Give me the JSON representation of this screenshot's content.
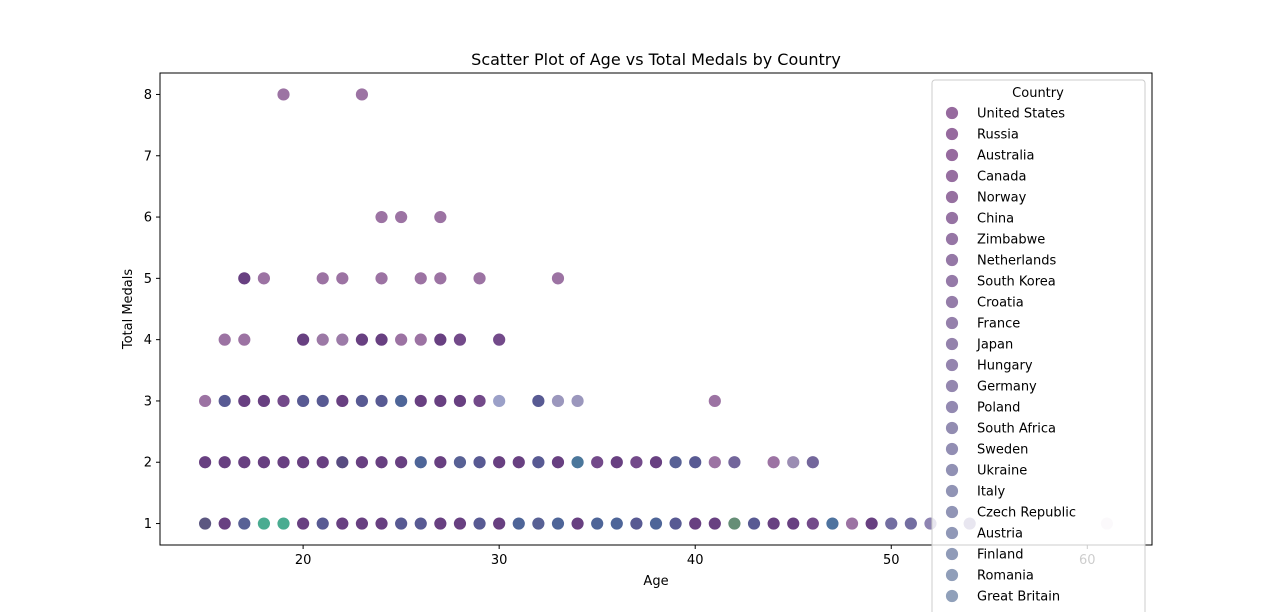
{
  "chart_data": {
    "type": "scatter",
    "title": "Scatter Plot of Age vs Total Medals by Country",
    "xlabel": "Age",
    "ylabel": "Total Medals",
    "xlim": [
      12.7,
      63.3
    ],
    "ylim": [
      0.65,
      8.35
    ],
    "xticks": [
      20,
      30,
      40,
      50,
      60
    ],
    "yticks": [
      1,
      2,
      3,
      4,
      5,
      6,
      7,
      8
    ],
    "grid": false,
    "legend": {
      "title": "Country",
      "placement": "upper right",
      "entries": [
        {
          "name": "United States",
          "color": "#8b5a93"
        },
        {
          "name": "Russia",
          "color": "#8b5a93"
        },
        {
          "name": "Australia",
          "color": "#8b5a93"
        },
        {
          "name": "Canada",
          "color": "#8b5e96"
        },
        {
          "name": "Norway",
          "color": "#8b6196"
        },
        {
          "name": "China",
          "color": "#8b6499"
        },
        {
          "name": "Zimbabwe",
          "color": "#8b679b"
        },
        {
          "name": "Netherlands",
          "color": "#8a699c"
        },
        {
          "name": "South Korea",
          "color": "#8a6c9e"
        },
        {
          "name": "Croatia",
          "color": "#896fa0"
        },
        {
          "name": "France",
          "color": "#8972a2"
        },
        {
          "name": "Japan",
          "color": "#8874a3"
        },
        {
          "name": "Hungary",
          "color": "#8877a5"
        },
        {
          "name": "Germany",
          "color": "#887aa6"
        },
        {
          "name": "Poland",
          "color": "#877ca8"
        },
        {
          "name": "South Africa",
          "color": "#867fa9"
        },
        {
          "name": "Sweden",
          "color": "#8682ab"
        },
        {
          "name": "Ukraine",
          "color": "#8585ac"
        },
        {
          "name": "Italy",
          "color": "#8588ad"
        },
        {
          "name": "Czech Republic",
          "color": "#858aae"
        },
        {
          "name": "Austria",
          "color": "#848daf"
        },
        {
          "name": "Finland",
          "color": "#8490b0"
        },
        {
          "name": "Romania",
          "color": "#8493b1"
        },
        {
          "name": "Great Britain",
          "color": "#8496b2"
        }
      ]
    },
    "points": [
      {
        "x": 19,
        "y": 8,
        "color": "#8b5a93"
      },
      {
        "x": 23,
        "y": 8,
        "color": "#8b5a93"
      },
      {
        "x": 24,
        "y": 6,
        "color": "#8b5a93"
      },
      {
        "x": 25,
        "y": 6,
        "color": "#8b5a93"
      },
      {
        "x": 27,
        "y": 6,
        "color": "#8b5a93"
      },
      {
        "x": 17,
        "y": 5,
        "color": "#4d1f6b"
      },
      {
        "x": 18,
        "y": 5,
        "color": "#8b5a93"
      },
      {
        "x": 21,
        "y": 5,
        "color": "#8b5a93"
      },
      {
        "x": 22,
        "y": 5,
        "color": "#8b5a93"
      },
      {
        "x": 24,
        "y": 5,
        "color": "#8b5a93"
      },
      {
        "x": 26,
        "y": 5,
        "color": "#8b5a93"
      },
      {
        "x": 27,
        "y": 5,
        "color": "#8b5a93"
      },
      {
        "x": 29,
        "y": 5,
        "color": "#8b5a93"
      },
      {
        "x": 33,
        "y": 5,
        "color": "#8b5a93"
      },
      {
        "x": 16,
        "y": 4,
        "color": "#8b5a93"
      },
      {
        "x": 17,
        "y": 4,
        "color": "#8b5a93"
      },
      {
        "x": 20,
        "y": 4,
        "color": "#4d1f6b"
      },
      {
        "x": 21,
        "y": 4,
        "color": "#8b6196"
      },
      {
        "x": 22,
        "y": 4,
        "color": "#8b6499"
      },
      {
        "x": 23,
        "y": 4,
        "color": "#4d1f6b"
      },
      {
        "x": 24,
        "y": 4,
        "color": "#4d1f6b"
      },
      {
        "x": 25,
        "y": 4,
        "color": "#8b5a93"
      },
      {
        "x": 26,
        "y": 4,
        "color": "#8b5a93"
      },
      {
        "x": 27,
        "y": 4,
        "color": "#4d1f6b"
      },
      {
        "x": 28,
        "y": 4,
        "color": "#5a2a75"
      },
      {
        "x": 30,
        "y": 4,
        "color": "#5a2a75"
      },
      {
        "x": 15,
        "y": 3,
        "color": "#8b5a93"
      },
      {
        "x": 16,
        "y": 3,
        "color": "#3b3d80"
      },
      {
        "x": 17,
        "y": 3,
        "color": "#4d1f6b"
      },
      {
        "x": 18,
        "y": 3,
        "color": "#4d1f6b"
      },
      {
        "x": 19,
        "y": 3,
        "color": "#5a2a75"
      },
      {
        "x": 20,
        "y": 3,
        "color": "#3b3d80"
      },
      {
        "x": 21,
        "y": 3,
        "color": "#3b3d80"
      },
      {
        "x": 22,
        "y": 3,
        "color": "#4d1f6b"
      },
      {
        "x": 23,
        "y": 3,
        "color": "#3b3d80"
      },
      {
        "x": 24,
        "y": 3,
        "color": "#3b3d80"
      },
      {
        "x": 25,
        "y": 3,
        "color": "#2f4a86"
      },
      {
        "x": 26,
        "y": 3,
        "color": "#4d1f6b"
      },
      {
        "x": 27,
        "y": 3,
        "color": "#4d1f6b"
      },
      {
        "x": 28,
        "y": 3,
        "color": "#4d1f6b"
      },
      {
        "x": 29,
        "y": 3,
        "color": "#5a2a75"
      },
      {
        "x": 30,
        "y": 3,
        "color": "#8a8fbe"
      },
      {
        "x": 32,
        "y": 3,
        "color": "#3b3d80"
      },
      {
        "x": 33,
        "y": 3,
        "color": "#8a85b2"
      },
      {
        "x": 34,
        "y": 3,
        "color": "#8a85b2"
      },
      {
        "x": 41,
        "y": 3,
        "color": "#8b5a93"
      },
      {
        "x": 15,
        "y": 2,
        "color": "#4d1f6b"
      },
      {
        "x": 16,
        "y": 2,
        "color": "#4d1f6b"
      },
      {
        "x": 17,
        "y": 2,
        "color": "#4d1f6b"
      },
      {
        "x": 18,
        "y": 2,
        "color": "#4d1f6b"
      },
      {
        "x": 19,
        "y": 2,
        "color": "#4d1f6b"
      },
      {
        "x": 20,
        "y": 2,
        "color": "#4d1f6b"
      },
      {
        "x": 21,
        "y": 2,
        "color": "#4d1f6b"
      },
      {
        "x": 22,
        "y": 2,
        "color": "#3b2d6b"
      },
      {
        "x": 23,
        "y": 2,
        "color": "#4d1f6b"
      },
      {
        "x": 24,
        "y": 2,
        "color": "#4d1f6b"
      },
      {
        "x": 25,
        "y": 2,
        "color": "#4d1f6b"
      },
      {
        "x": 26,
        "y": 2,
        "color": "#2f4a86"
      },
      {
        "x": 27,
        "y": 2,
        "color": "#4d1f6b"
      },
      {
        "x": 28,
        "y": 2,
        "color": "#3b4583"
      },
      {
        "x": 29,
        "y": 2,
        "color": "#3b3d80"
      },
      {
        "x": 30,
        "y": 2,
        "color": "#4d1f6b"
      },
      {
        "x": 31,
        "y": 2,
        "color": "#4d1f6b"
      },
      {
        "x": 32,
        "y": 2,
        "color": "#3b3d80"
      },
      {
        "x": 33,
        "y": 2,
        "color": "#4d1f6b"
      },
      {
        "x": 34,
        "y": 2,
        "color": "#2c5f8a"
      },
      {
        "x": 35,
        "y": 2,
        "color": "#5a2a75"
      },
      {
        "x": 36,
        "y": 2,
        "color": "#4d1f6b"
      },
      {
        "x": 37,
        "y": 2,
        "color": "#5a2a75"
      },
      {
        "x": 38,
        "y": 2,
        "color": "#4d1f6b"
      },
      {
        "x": 39,
        "y": 2,
        "color": "#3b4583"
      },
      {
        "x": 40,
        "y": 2,
        "color": "#3b3d80"
      },
      {
        "x": 41,
        "y": 2,
        "color": "#8b5a93"
      },
      {
        "x": 42,
        "y": 2,
        "color": "#5b4b8a"
      },
      {
        "x": 44,
        "y": 2,
        "color": "#8b5a93"
      },
      {
        "x": 45,
        "y": 2,
        "color": "#8a79a6"
      },
      {
        "x": 46,
        "y": 2,
        "color": "#5b4b8a"
      },
      {
        "x": 15,
        "y": 1,
        "color": "#3f3a6b"
      },
      {
        "x": 16,
        "y": 1,
        "color": "#4d1f6b"
      },
      {
        "x": 17,
        "y": 1,
        "color": "#3b4583"
      },
      {
        "x": 18,
        "y": 1,
        "color": "#2a9d7e"
      },
      {
        "x": 19,
        "y": 1,
        "color": "#2a9d7e"
      },
      {
        "x": 20,
        "y": 1,
        "color": "#4d1f6b"
      },
      {
        "x": 21,
        "y": 1,
        "color": "#3b3d80"
      },
      {
        "x": 22,
        "y": 1,
        "color": "#4d1f6b"
      },
      {
        "x": 23,
        "y": 1,
        "color": "#4d1f6b"
      },
      {
        "x": 24,
        "y": 1,
        "color": "#4d1f6b"
      },
      {
        "x": 25,
        "y": 1,
        "color": "#3b3d80"
      },
      {
        "x": 26,
        "y": 1,
        "color": "#3b3d80"
      },
      {
        "x": 27,
        "y": 1,
        "color": "#4d1f6b"
      },
      {
        "x": 28,
        "y": 1,
        "color": "#4d1f6b"
      },
      {
        "x": 29,
        "y": 1,
        "color": "#3b3d80"
      },
      {
        "x": 30,
        "y": 1,
        "color": "#4d1f6b"
      },
      {
        "x": 31,
        "y": 1,
        "color": "#2f4a86"
      },
      {
        "x": 32,
        "y": 1,
        "color": "#3b4583"
      },
      {
        "x": 33,
        "y": 1,
        "color": "#2f4a86"
      },
      {
        "x": 34,
        "y": 1,
        "color": "#4d1f6b"
      },
      {
        "x": 35,
        "y": 1,
        "color": "#2f4a86"
      },
      {
        "x": 36,
        "y": 1,
        "color": "#2f4a86"
      },
      {
        "x": 37,
        "y": 1,
        "color": "#3b3d80"
      },
      {
        "x": 38,
        "y": 1,
        "color": "#2f4a86"
      },
      {
        "x": 39,
        "y": 1,
        "color": "#3b3d80"
      },
      {
        "x": 40,
        "y": 1,
        "color": "#4d1f6b"
      },
      {
        "x": 41,
        "y": 1,
        "color": "#4d1f6b"
      },
      {
        "x": 42,
        "y": 1,
        "color": "#4a7a5e"
      },
      {
        "x": 43,
        "y": 1,
        "color": "#3b3d80"
      },
      {
        "x": 44,
        "y": 1,
        "color": "#4d1f6b"
      },
      {
        "x": 45,
        "y": 1,
        "color": "#4d1f6b"
      },
      {
        "x": 46,
        "y": 1,
        "color": "#5a2a75"
      },
      {
        "x": 47,
        "y": 1,
        "color": "#2f5a8e"
      },
      {
        "x": 48,
        "y": 1,
        "color": "#8b5a93"
      },
      {
        "x": 49,
        "y": 1,
        "color": "#4d1f6b"
      },
      {
        "x": 50,
        "y": 1,
        "color": "#5b5590"
      },
      {
        "x": 51,
        "y": 1,
        "color": "#5b5590"
      },
      {
        "x": 52,
        "y": 1,
        "color": "#7a6fa5"
      },
      {
        "x": 54,
        "y": 1,
        "color": "#7a6fa5"
      },
      {
        "x": 61,
        "y": 1,
        "color": "#e5dbe8"
      }
    ]
  }
}
